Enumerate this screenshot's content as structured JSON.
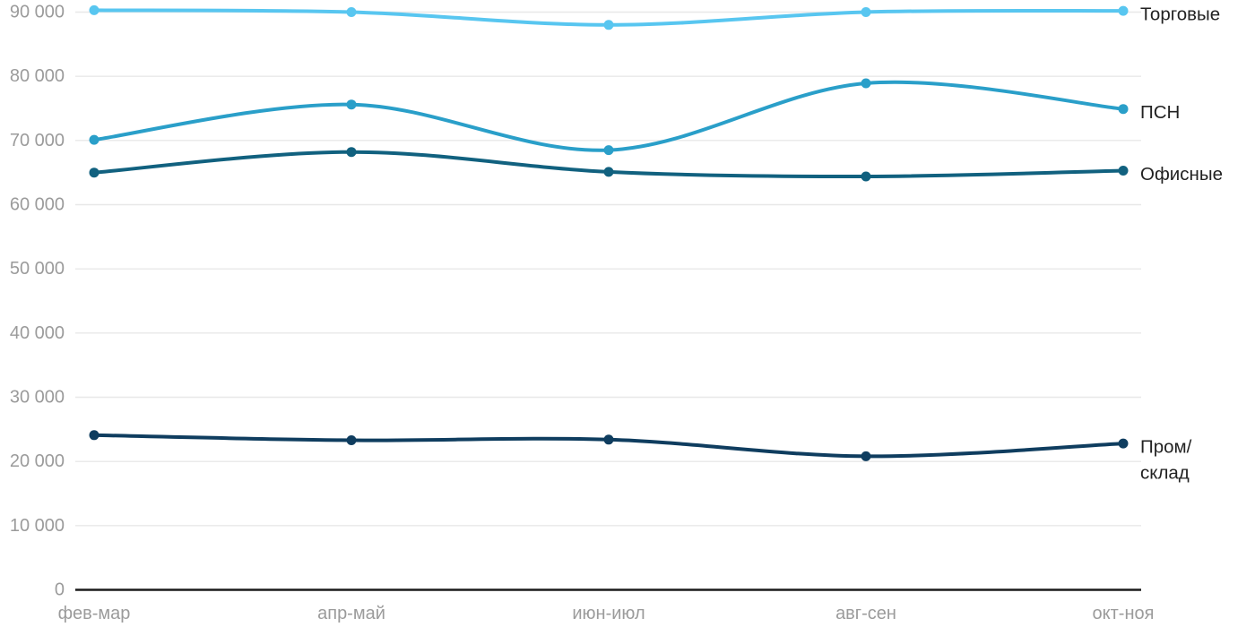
{
  "chart_data": {
    "type": "line",
    "title": "",
    "categories": [
      "фев-мар",
      "апр-май",
      "июн-июл",
      "авг-сен",
      "окт-ноя"
    ],
    "series": [
      {
        "name": "Торговые",
        "label_lines": [
          "Торговые"
        ],
        "color": "#58C6F0",
        "values": [
          90300,
          90000,
          88000,
          90000,
          90200
        ]
      },
      {
        "name": "ПСН",
        "label_lines": [
          "ПСН"
        ],
        "color": "#2A9FC9",
        "values": [
          70100,
          75600,
          68500,
          78900,
          74900
        ]
      },
      {
        "name": "Офисные",
        "label_lines": [
          "Офисные"
        ],
        "color": "#11617F",
        "values": [
          65000,
          68200,
          65100,
          64400,
          65300
        ]
      },
      {
        "name": "Пром/склад",
        "label_lines": [
          "Пром/",
          "склад"
        ],
        "color": "#0F3D5F",
        "values": [
          24100,
          23300,
          23400,
          20800,
          22800
        ]
      }
    ],
    "y_ticks": [
      0,
      10000,
      20000,
      30000,
      40000,
      50000,
      60000,
      70000,
      80000,
      90000
    ],
    "y_tick_labels": [
      "0",
      "10 000",
      "20 000",
      "30 000",
      "40 000",
      "50 000",
      "60 000",
      "70 000",
      "80 000",
      "90 000"
    ],
    "ylim": [
      0,
      90000
    ],
    "grid": true,
    "legend_position": "right-line-end-labels"
  },
  "styles": {
    "gridline_color": "#E8E8E8",
    "axis_color": "#1C1C1C",
    "tick_label_color": "#9B9B9B",
    "series_label_color": "#222222",
    "background_color": "#FFFFFF"
  }
}
